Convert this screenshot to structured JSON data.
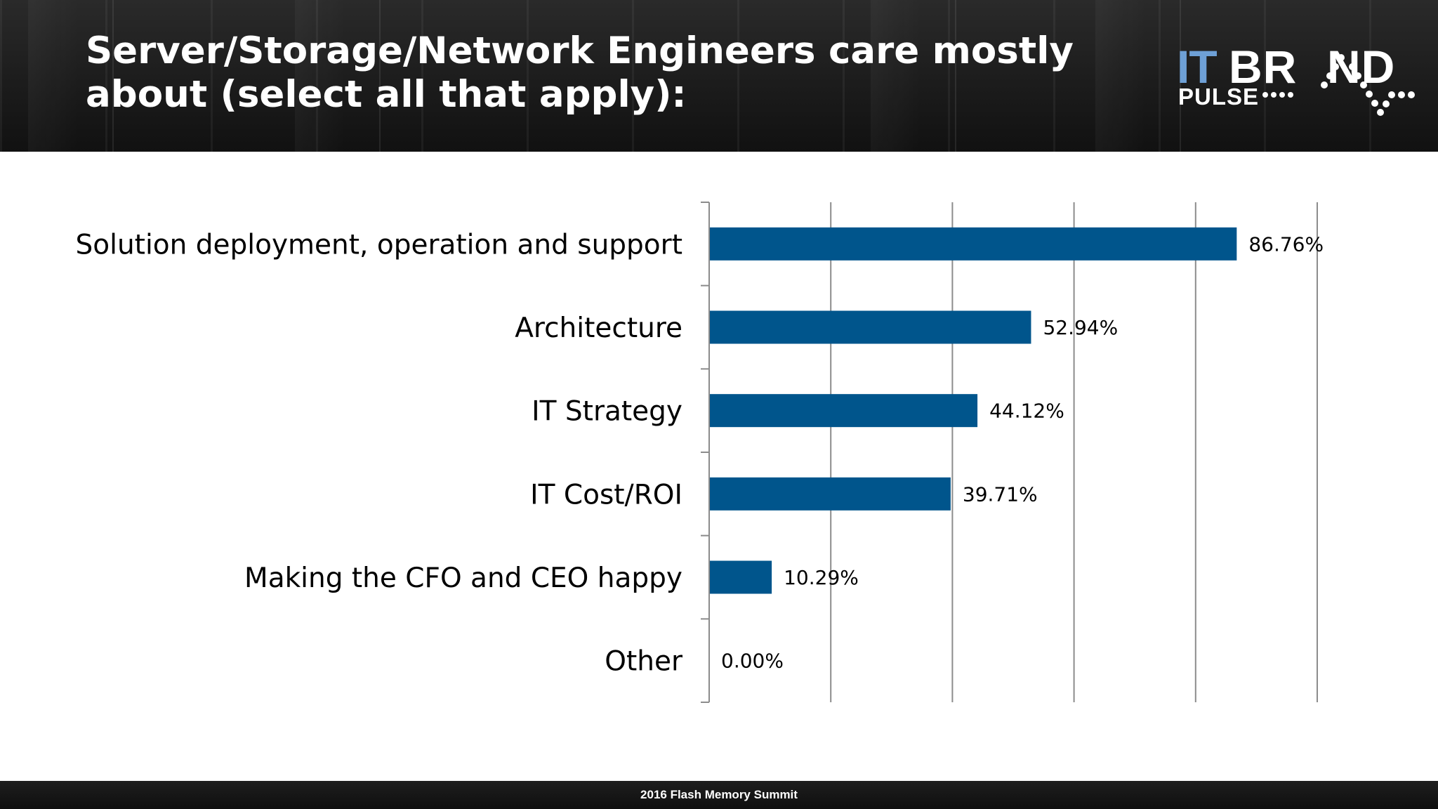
{
  "slide": {
    "title": "Server/Storage/Network Engineers care mostly about (select all that apply):",
    "logo_text": "ITBRAND PULSE",
    "footer": "2016 Flash Memory Summit"
  },
  "colors": {
    "bar": "#00558c",
    "header_bg": "#1c1c1c",
    "logo_it": "#6ea0d6"
  },
  "chart_data": {
    "type": "bar",
    "orientation": "horizontal",
    "categories": [
      "Solution deployment, operation and support",
      "Architecture",
      "IT Strategy",
      "IT Cost/ROI",
      "Making the CFO and CEO happy",
      "Other"
    ],
    "values": [
      86.76,
      52.94,
      44.12,
      39.71,
      10.29,
      0.0
    ],
    "data_labels": [
      "86.76%",
      "52.94%",
      "44.12%",
      "39.71%",
      "10.29%",
      "0.00%"
    ],
    "xlim": [
      0,
      100
    ],
    "gridlines": true,
    "tick_labels_shown": false,
    "legend": "none"
  }
}
